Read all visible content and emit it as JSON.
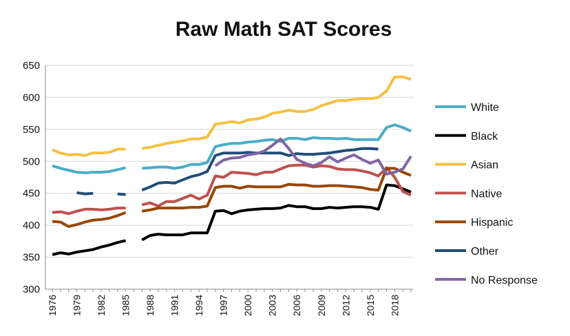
{
  "chart_data": {
    "type": "line",
    "title": "Raw Math SAT Scores",
    "xlabel": "",
    "ylabel": "",
    "ylim": [
      300,
      650
    ],
    "yticks": [
      650,
      600,
      550,
      500,
      450,
      400,
      350,
      300
    ],
    "xlim": [
      1976,
      2020
    ],
    "xticks": [
      1976,
      1979,
      1982,
      1985,
      1988,
      1991,
      1994,
      1997,
      2000,
      2003,
      2006,
      2009,
      2012,
      2015,
      2018
    ],
    "grid": true,
    "legend": "right",
    "series": [
      {
        "name": "White",
        "color": "#4bacc6",
        "x": [
          1976,
          1977,
          1978,
          1979,
          1980,
          1981,
          1982,
          1983,
          1984,
          1985,
          1986,
          1987,
          1988,
          1989,
          1990,
          1991,
          1992,
          1993,
          1994,
          1995,
          1996,
          1997,
          1998,
          1999,
          2000,
          2001,
          2002,
          2003,
          2004,
          2005,
          2006,
          2007,
          2008,
          2009,
          2010,
          2011,
          2012,
          2013,
          2014,
          2015,
          2016,
          2017,
          2018,
          2019,
          2020
        ],
        "values": [
          493,
          489,
          486,
          483,
          482,
          483,
          483,
          484,
          487,
          490,
          null,
          489,
          490,
          491,
          491,
          489,
          491,
          495,
          495,
          498,
          523,
          526,
          528,
          528,
          530,
          531,
          533,
          534,
          531,
          536,
          536,
          534,
          537,
          536,
          536,
          535,
          536,
          534,
          534,
          534,
          534,
          553,
          557,
          553,
          547
        ]
      },
      {
        "name": "Black",
        "color": "#000000",
        "x": [
          1976,
          1977,
          1978,
          1979,
          1980,
          1981,
          1982,
          1983,
          1984,
          1985,
          1986,
          1987,
          1988,
          1989,
          1990,
          1991,
          1992,
          1993,
          1994,
          1995,
          1996,
          1997,
          1998,
          1999,
          2000,
          2001,
          2002,
          2003,
          2004,
          2005,
          2006,
          2007,
          2008,
          2009,
          2010,
          2011,
          2012,
          2013,
          2014,
          2015,
          2016,
          2017,
          2018,
          2019,
          2020
        ],
        "values": [
          354,
          357,
          355,
          358,
          360,
          362,
          366,
          369,
          373,
          376,
          null,
          377,
          384,
          386,
          385,
          385,
          385,
          388,
          388,
          388,
          422,
          423,
          418,
          422,
          424,
          425,
          426,
          426,
          427,
          431,
          429,
          429,
          426,
          426,
          428,
          427,
          428,
          429,
          429,
          428,
          425,
          463,
          462,
          457,
          452
        ]
      },
      {
        "name": "Asian",
        "color": "#f6c142",
        "x": [
          1976,
          1977,
          1978,
          1979,
          1980,
          1981,
          1982,
          1983,
          1984,
          1985,
          1986,
          1987,
          1988,
          1989,
          1990,
          1991,
          1992,
          1993,
          1994,
          1995,
          1996,
          1997,
          1998,
          1999,
          2000,
          2001,
          2002,
          2003,
          2004,
          2005,
          2006,
          2007,
          2008,
          2009,
          2010,
          2011,
          2012,
          2013,
          2014,
          2015,
          2016,
          2017,
          2018,
          2019,
          2020
        ],
        "values": [
          518,
          513,
          510,
          511,
          509,
          513,
          513,
          514,
          519,
          519,
          null,
          520,
          522,
          525,
          528,
          530,
          532,
          535,
          535,
          538,
          558,
          560,
          562,
          560,
          565,
          566,
          569,
          575,
          577,
          580,
          578,
          578,
          581,
          587,
          591,
          595,
          595,
          597,
          598,
          598,
          600,
          610,
          632,
          632,
          628
        ]
      },
      {
        "name": "Native",
        "color": "#c0504d",
        "x": [
          1976,
          1977,
          1978,
          1979,
          1980,
          1981,
          1982,
          1983,
          1984,
          1985,
          1986,
          1987,
          1988,
          1989,
          1990,
          1991,
          1992,
          1993,
          1994,
          1995,
          1996,
          1997,
          1998,
          1999,
          2000,
          2001,
          2002,
          2003,
          2004,
          2005,
          2006,
          2007,
          2008,
          2009,
          2010,
          2011,
          2012,
          2013,
          2014,
          2015,
          2016,
          2017,
          2018,
          2019,
          2020
        ],
        "values": [
          420,
          421,
          418,
          422,
          425,
          425,
          424,
          425,
          427,
          427,
          null,
          432,
          435,
          430,
          437,
          437,
          442,
          447,
          441,
          447,
          477,
          475,
          483,
          482,
          481,
          479,
          483,
          483,
          488,
          493,
          494,
          494,
          491,
          493,
          492,
          488,
          487,
          487,
          485,
          482,
          477,
          490,
          475,
          453,
          447
        ]
      },
      {
        "name": "Hispanic",
        "color": "#974706",
        "x": [
          1976,
          1977,
          1978,
          1979,
          1980,
          1981,
          1982,
          1983,
          1984,
          1985,
          1986,
          1987,
          1988,
          1989,
          1990,
          1991,
          1992,
          1993,
          1994,
          1995,
          1996,
          1997,
          1998,
          1999,
          2000,
          2001,
          2002,
          2003,
          2004,
          2005,
          2006,
          2007,
          2008,
          2009,
          2010,
          2011,
          2012,
          2013,
          2014,
          2015,
          2016,
          2017,
          2018,
          2019,
          2020
        ],
        "values": [
          406,
          405,
          398,
          401,
          405,
          408,
          409,
          411,
          415,
          420,
          null,
          422,
          424,
          427,
          427,
          427,
          427,
          428,
          428,
          430,
          459,
          461,
          461,
          458,
          461,
          460,
          460,
          460,
          460,
          464,
          463,
          463,
          461,
          461,
          462,
          462,
          461,
          460,
          459,
          456,
          455,
          489,
          489,
          483,
          478
        ]
      },
      {
        "name": "Other",
        "color": "#1f4e79",
        "x": [
          1976,
          1977,
          1978,
          1979,
          1980,
          1981,
          1982,
          1983,
          1984,
          1985,
          1986,
          1987,
          1988,
          1989,
          1990,
          1991,
          1992,
          1993,
          1994,
          1995,
          1996,
          1997,
          1998,
          1999,
          2000,
          2001,
          2002,
          2003,
          2004,
          2005,
          2006,
          2007,
          2008,
          2009,
          2010,
          2011,
          2012,
          2013,
          2014,
          2015,
          2016,
          2017,
          2018,
          2019,
          2020
        ],
        "values": [
          null,
          null,
          null,
          451,
          449,
          450,
          null,
          null,
          449,
          448,
          null,
          455,
          460,
          466,
          467,
          466,
          471,
          476,
          479,
          484,
          509,
          513,
          513,
          513,
          514,
          513,
          513,
          513,
          513,
          509,
          512,
          511,
          511,
          512,
          513,
          515,
          517,
          518,
          520,
          520,
          519,
          null,
          null,
          null,
          null
        ]
      },
      {
        "name": "No Response",
        "color": "#8064a2",
        "x": [
          1976,
          1977,
          1978,
          1979,
          1980,
          1981,
          1982,
          1983,
          1984,
          1985,
          1986,
          1987,
          1988,
          1989,
          1990,
          1991,
          1992,
          1993,
          1994,
          1995,
          1996,
          1997,
          1998,
          1999,
          2000,
          2001,
          2002,
          2003,
          2004,
          2005,
          2006,
          2007,
          2008,
          2009,
          2010,
          2011,
          2012,
          2013,
          2014,
          2015,
          2016,
          2017,
          2018,
          2019,
          2020
        ],
        "values": [
          null,
          null,
          null,
          null,
          null,
          null,
          null,
          null,
          null,
          null,
          null,
          null,
          null,
          null,
          null,
          null,
          null,
          null,
          null,
          null,
          493,
          502,
          505,
          506,
          510,
          512,
          516,
          525,
          535,
          520,
          503,
          497,
          493,
          498,
          507,
          499,
          505,
          510,
          503,
          497,
          502,
          480,
          483,
          488,
          508
        ]
      }
    ]
  }
}
